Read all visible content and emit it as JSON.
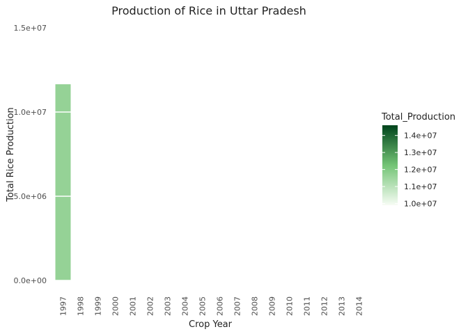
{
  "chart_data": {
    "type": "bar",
    "title": "Production of Rice in Uttar Pradesh",
    "xlabel": "Crop Year",
    "ylabel": "Total Rice Production",
    "categories": [
      "1997",
      "1998",
      "1999",
      "2000",
      "2001",
      "2002",
      "2003",
      "2004",
      "2005",
      "2006",
      "2007",
      "2008",
      "2009",
      "2010",
      "2011",
      "2012",
      "2013",
      "2014"
    ],
    "values": [
      11650000,
      null,
      null,
      null,
      null,
      null,
      null,
      null,
      null,
      null,
      null,
      null,
      null,
      null,
      null,
      null,
      null,
      null
    ],
    "ylim": [
      0,
      15000000
    ],
    "yticks": [
      {
        "value": 0,
        "label": "0.0e+00"
      },
      {
        "value": 5000000,
        "label": "5.0e+06"
      },
      {
        "value": 10000000,
        "label": "1.0e+07"
      },
      {
        "value": 15000000,
        "label": "1.5e+07"
      }
    ],
    "grid": true,
    "legend": {
      "title": "Total_Production",
      "placement": "right",
      "range": [
        9900000,
        14600000
      ],
      "ticks": [
        {
          "value": 10000000,
          "label": "1.0e+07"
        },
        {
          "value": 11000000,
          "label": "1.1e+07"
        },
        {
          "value": 12000000,
          "label": "1.2e+07"
        },
        {
          "value": 13000000,
          "label": "1.3e+07"
        },
        {
          "value": 14000000,
          "label": "1.4e+07"
        }
      ],
      "colors": {
        "low": "#f7fcf5",
        "mid": "#74c476",
        "high": "#00441b"
      }
    }
  }
}
